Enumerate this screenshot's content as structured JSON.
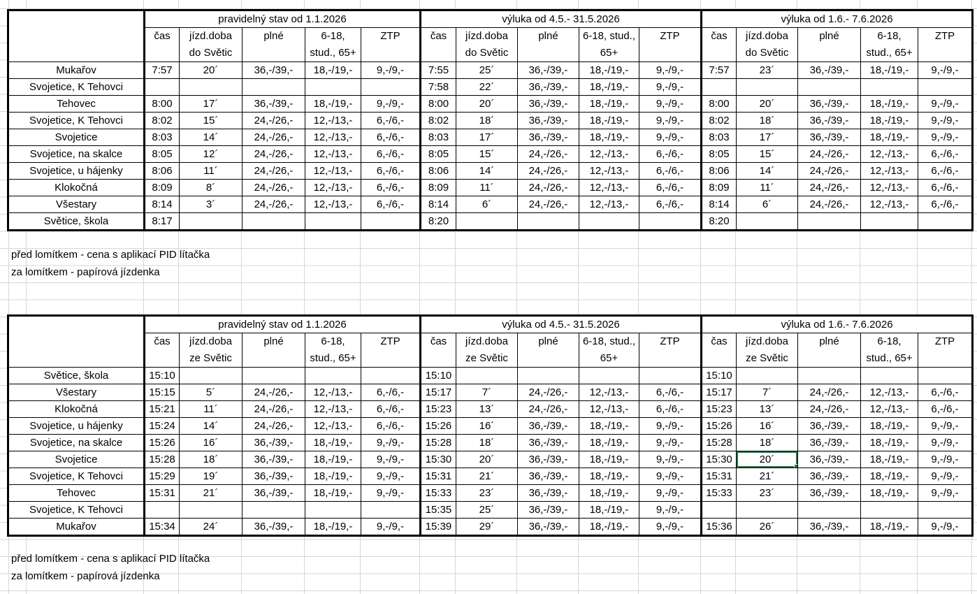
{
  "selection": {
    "table": 1,
    "row": 5,
    "cell": 11,
    "color": "#217346"
  },
  "notes": {
    "top": [
      "před lomítkem - cena s aplikací PID lítačka",
      "za lomítkem - papírová jízdenka"
    ],
    "bottom": [
      "před lomítkem - cena s aplikací PID lítačka",
      "za lomítkem - papírová jízdenka"
    ]
  },
  "tables": [
    {
      "sections": [
        {
          "title": "pravidelný stav od 1.1.2026",
          "columns": [
            {
              "line1": "čas",
              "line2": ""
            },
            {
              "line1": "jízd.doba",
              "line2": "do Světic"
            },
            {
              "line1": "plné",
              "line2": ""
            },
            {
              "line1": "6-18,",
              "line2": "stud., 65+"
            },
            {
              "line1": "ZTP",
              "line2": ""
            }
          ]
        },
        {
          "title": "výluka od 4.5.- 31.5.2026",
          "columns": [
            {
              "line1": "čas",
              "line2": ""
            },
            {
              "line1": "jízd.doba",
              "line2": "do Světic"
            },
            {
              "line1": "plné",
              "line2": ""
            },
            {
              "line1": "6-18, stud.,",
              "line2": "65+"
            },
            {
              "line1": "ZTP",
              "line2": ""
            }
          ]
        },
        {
          "title": "výluka od 1.6.- 7.6.2026",
          "columns": [
            {
              "line1": "čas",
              "line2": ""
            },
            {
              "line1": "jízd.doba",
              "line2": "do Světic"
            },
            {
              "line1": "plné",
              "line2": ""
            },
            {
              "line1": "6-18,",
              "line2": "stud., 65+"
            },
            {
              "line1": "ZTP",
              "line2": ""
            }
          ]
        }
      ],
      "rows": [
        {
          "station": "Mukařov",
          "cells": [
            "7:57",
            "20´",
            "36,-/39,-",
            "18,-/19,-",
            "9,-/9,-",
            "7:55",
            "25´",
            "36,-/39,-",
            "18,-/19,-",
            "9,-/9,-",
            "7:57",
            "23´",
            "36,-/39,-",
            "18,-/19,-",
            "9,-/9,-"
          ]
        },
        {
          "station": "Svojetice, K Tehovci",
          "cells": [
            "",
            "",
            "",
            "",
            "",
            "7:58",
            "22´",
            "36,-/39,-",
            "18,-/19,-",
            "9,-/9,-",
            "",
            "",
            "",
            "",
            ""
          ]
        },
        {
          "station": "Tehovec",
          "cells": [
            "8:00",
            "17´",
            "36,-/39,-",
            "18,-/19,-",
            "9,-/9,-",
            "8:00",
            "20´",
            "36,-/39,-",
            "18,-/19,-",
            "9,-/9,-",
            "8:00",
            "20´",
            "36,-/39,-",
            "18,-/19,-",
            "9,-/9,-"
          ]
        },
        {
          "station": "Svojetice, K Tehovci",
          "cells": [
            "8:02",
            "15´",
            "24,-/26,-",
            "12,-/13,-",
            "6,-/6,-",
            "8:02",
            "18´",
            "36,-/39,-",
            "18,-/19,-",
            "9,-/9,-",
            "8:02",
            "18´",
            "36,-/39,-",
            "18,-/19,-",
            "9,-/9,-"
          ]
        },
        {
          "station": "Svojetice",
          "cells": [
            "8:03",
            "14´",
            "24,-/26,-",
            "12,-/13,-",
            "6,-/6,-",
            "8:03",
            "17´",
            "36,-/39,-",
            "18,-/19,-",
            "9,-/9,-",
            "8:03",
            "17´",
            "36,-/39,-",
            "18,-/19,-",
            "9,-/9,-"
          ]
        },
        {
          "station": "Svojetice, na skalce",
          "cells": [
            "8:05",
            "12´",
            "24,-/26,-",
            "12,-/13,-",
            "6,-/6,-",
            "8:05",
            "15´",
            "24,-/26,-",
            "12,-/13,-",
            "6,-/6,-",
            "8:05",
            "15´",
            "24,-/26,-",
            "12,-/13,-",
            "6,-/6,-"
          ]
        },
        {
          "station": "Svojetice, u hájenky",
          "cells": [
            "8:06",
            "11´",
            "24,-/26,-",
            "12,-/13,-",
            "6,-/6,-",
            "8:06",
            "14´",
            "24,-/26,-",
            "12,-/13,-",
            "6,-/6,-",
            "8:06",
            "14´",
            "24,-/26,-",
            "12,-/13,-",
            "6,-/6,-"
          ]
        },
        {
          "station": "Klokočná",
          "cells": [
            "8:09",
            "8´",
            "24,-/26,-",
            "12,-/13,-",
            "6,-/6,-",
            "8:09",
            "11´",
            "24,-/26,-",
            "12,-/13,-",
            "6,-/6,-",
            "8:09",
            "11´",
            "24,-/26,-",
            "12,-/13,-",
            "6,-/6,-"
          ]
        },
        {
          "station": "Všestary",
          "cells": [
            "8:14",
            "3´",
            "24,-/26,-",
            "12,-/13,-",
            "6,-/6,-",
            "8:14",
            "6´",
            "24,-/26,-",
            "12,-/13,-",
            "6,-/6,-",
            "8:14",
            "6´",
            "24,-/26,-",
            "12,-/13,-",
            "6,-/6,-"
          ]
        },
        {
          "station": "Světice, škola",
          "cells": [
            "8:17",
            "",
            "",
            "",
            "",
            "8:20",
            "",
            "",
            "",
            "",
            "8:20",
            "",
            "",
            "",
            ""
          ]
        }
      ]
    },
    {
      "sections": [
        {
          "title": "pravidelný stav od 1.1.2026",
          "columns": [
            {
              "line1": "čas",
              "line2": ""
            },
            {
              "line1": "jízd.doba",
              "line2": "ze Světic"
            },
            {
              "line1": "plné",
              "line2": ""
            },
            {
              "line1": "6-18,",
              "line2": "stud., 65+"
            },
            {
              "line1": "ZTP",
              "line2": ""
            }
          ]
        },
        {
          "title": "výluka od 4.5.- 31.5.2026",
          "columns": [
            {
              "line1": "čas",
              "line2": ""
            },
            {
              "line1": "jízd.doba",
              "line2": "ze Světic"
            },
            {
              "line1": "plné",
              "line2": ""
            },
            {
              "line1": "6-18, stud.,",
              "line2": "65+"
            },
            {
              "line1": "ZTP",
              "line2": ""
            }
          ]
        },
        {
          "title": "výluka od 1.6.- 7.6.2026",
          "columns": [
            {
              "line1": "čas",
              "line2": ""
            },
            {
              "line1": "jízd.doba",
              "line2": "ze Světic"
            },
            {
              "line1": "plné",
              "line2": ""
            },
            {
              "line1": "6-18,",
              "line2": "stud., 65+"
            },
            {
              "line1": "ZTP",
              "line2": ""
            }
          ]
        }
      ],
      "rows": [
        {
          "station": "Světice, škola",
          "cells": [
            "15:10",
            "",
            "",
            "",
            "",
            "15:10",
            "",
            "",
            "",
            "",
            "15:10",
            "",
            "",
            "",
            ""
          ]
        },
        {
          "station": "Všestary",
          "cells": [
            "15:15",
            "5´",
            "24,-/26,-",
            "12,-/13,-",
            "6,-/6,-",
            "15:17",
            "7´",
            "24,-/26,-",
            "12,-/13,-",
            "6,-/6,-",
            "15:17",
            "7´",
            "24,-/26,-",
            "12,-/13,-",
            "6,-/6,-"
          ]
        },
        {
          "station": "Klokočná",
          "cells": [
            "15:21",
            "11´",
            "24,-/26,-",
            "12,-/13,-",
            "6,-/6,-",
            "15:23",
            "13´",
            "24,-/26,-",
            "12,-/13,-",
            "6,-/6,-",
            "15:23",
            "13´",
            "24,-/26,-",
            "12,-/13,-",
            "6,-/6,-"
          ]
        },
        {
          "station": "Svojetice, u hájenky",
          "cells": [
            "15:24",
            "14´",
            "24,-/26,-",
            "12,-/13,-",
            "6,-/6,-",
            "15:26",
            "16´",
            "36,-/39,-",
            "18,-/19,-",
            "9,-/9,-",
            "15:26",
            "16´",
            "36,-/39,-",
            "18,-/19,-",
            "9,-/9,-"
          ]
        },
        {
          "station": "Svojetice, na skalce",
          "cells": [
            "15:26",
            "16´",
            "36,-/39,-",
            "18,-/19,-",
            "9,-/9,-",
            "15:28",
            "18´",
            "36,-/39,-",
            "18,-/19,-",
            "9,-/9,-",
            "15:28",
            "18´",
            "36,-/39,-",
            "18,-/19,-",
            "9,-/9,-"
          ]
        },
        {
          "station": "Svojetice",
          "cells": [
            "15:28",
            "18´",
            "36,-/39,-",
            "18,-/19,-",
            "9,-/9,-",
            "15:30",
            "20´",
            "36,-/39,-",
            "18,-/19,-",
            "9,-/9,-",
            "15:30",
            "20´",
            "36,-/39,-",
            "18,-/19,-",
            "9,-/9,-"
          ]
        },
        {
          "station": "Svojetice, K Tehovci",
          "cells": [
            "15:29",
            "19´",
            "36,-/39,-",
            "18,-/19,-",
            "9,-/9,-",
            "15:31",
            "21´",
            "36,-/39,-",
            "18,-/19,-",
            "9,-/9,-",
            "15:31",
            "21´",
            "36,-/39,-",
            "18,-/19,-",
            "9,-/9,-"
          ]
        },
        {
          "station": "Tehovec",
          "cells": [
            "15:31",
            "21´",
            "36,-/39,-",
            "18,-/19,-",
            "9,-/9,-",
            "15:33",
            "23´",
            "36,-/39,-",
            "18,-/19,-",
            "9,-/9,-",
            "15:33",
            "23´",
            "36,-/39,-",
            "18,-/19,-",
            "9,-/9,-"
          ]
        },
        {
          "station": "Svojetice, K Tehovci",
          "cells": [
            "",
            "",
            "",
            "",
            "",
            "15:35",
            "25´",
            "36,-/39,-",
            "18,-/19,-",
            "9,-/9,-",
            "",
            "",
            "",
            "",
            ""
          ]
        },
        {
          "station": "Mukařov",
          "cells": [
            "15:34",
            "24´",
            "36,-/39,-",
            "18,-/19,-",
            "9,-/9,-",
            "15:39",
            "29´",
            "36,-/39,-",
            "18,-/19,-",
            "9,-/9,-",
            "15:36",
            "26´",
            "36,-/39,-",
            "18,-/19,-",
            "9,-/9,-"
          ]
        }
      ]
    }
  ]
}
